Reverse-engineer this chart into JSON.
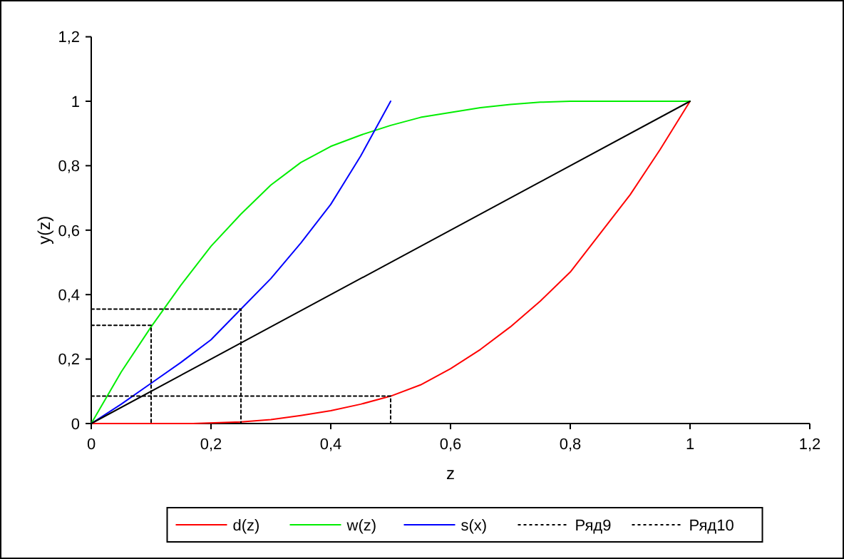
{
  "chart_data": {
    "type": "line",
    "xlabel": "z",
    "ylabel": "y(z)",
    "xlim": [
      0,
      1.2
    ],
    "ylim": [
      0,
      1.2
    ],
    "xticks": [
      0,
      {
        "value": 0.2,
        "label": "0,2"
      },
      {
        "value": 0.4,
        "label": "0,4"
      },
      {
        "value": 0.6,
        "label": "0,6"
      },
      {
        "value": 0.8,
        "label": "0,8"
      },
      1,
      {
        "value": 1.2,
        "label": "1,2"
      }
    ],
    "yticks": [
      0,
      {
        "value": 0.2,
        "label": "0,2"
      },
      {
        "value": 0.4,
        "label": "0,4"
      },
      {
        "value": 0.6,
        "label": "0,6"
      },
      {
        "value": 0.8,
        "label": "0,8"
      },
      1,
      {
        "value": 1.2,
        "label": "1,2"
      }
    ],
    "grid": false,
    "legend": "bottom",
    "marker": "none",
    "line_style": "solid",
    "series": [
      {
        "name": "d(z)",
        "color": "#ff0000",
        "x": [
          0,
          0.17,
          0.25,
          0.3,
          0.35,
          0.4,
          0.45,
          0.5,
          0.55,
          0.6,
          0.65,
          0.7,
          0.75,
          0.8,
          0.85,
          0.9,
          0.95,
          1
        ],
        "values": [
          0,
          0,
          0.005,
          0.012,
          0.025,
          0.04,
          0.06,
          0.085,
          0.12,
          0.17,
          0.23,
          0.3,
          0.38,
          0.47,
          0.59,
          0.71,
          0.85,
          1
        ]
      },
      {
        "name": "w(z)",
        "color": "#00ee00",
        "x": [
          0,
          0.05,
          0.1,
          0.15,
          0.2,
          0.25,
          0.3,
          0.35,
          0.4,
          0.45,
          0.5,
          0.55,
          0.6,
          0.65,
          0.7,
          0.75,
          0.8,
          0.9,
          1
        ],
        "values": [
          0,
          0.16,
          0.3,
          0.43,
          0.55,
          0.65,
          0.74,
          0.81,
          0.86,
          0.895,
          0.925,
          0.95,
          0.965,
          0.98,
          0.99,
          0.997,
          1,
          1,
          1
        ]
      },
      {
        "name": "s(x)",
        "color": "#0000ff",
        "x": [
          0,
          0.05,
          0.1,
          0.15,
          0.2,
          0.25,
          0.3,
          0.35,
          0.4,
          0.45,
          0.5
        ],
        "values": [
          0,
          0.06,
          0.125,
          0.19,
          0.26,
          0.355,
          0.45,
          0.56,
          0.68,
          0.83,
          1
        ]
      },
      {
        "color": "#000000",
        "x": [
          0,
          1
        ],
        "values": [
          0,
          1
        ]
      },
      {
        "name": "Ряд9",
        "color": "#000000",
        "line_style": "dotted",
        "x": [
          0,
          0.1,
          0.1,
          null,
          0,
          0.5,
          0.5
        ],
        "values": [
          0.305,
          0.305,
          0,
          null,
          0.085,
          0.085,
          0
        ]
      },
      {
        "name": "Ряд10",
        "color": "#000000",
        "line_style": "dotted",
        "x": [
          0,
          0.25,
          0.25
        ],
        "values": [
          0.355,
          0.355,
          0
        ]
      }
    ]
  }
}
